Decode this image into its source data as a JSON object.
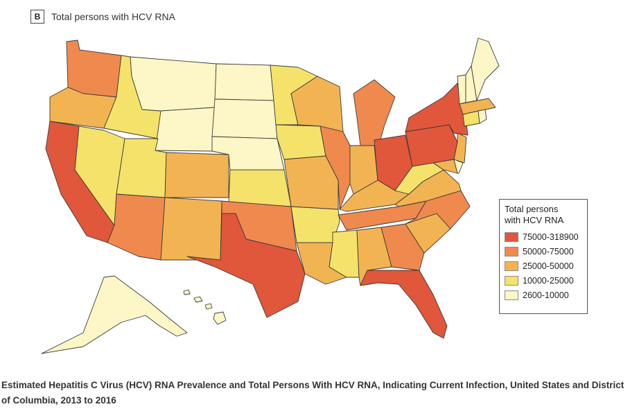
{
  "panel": {
    "letter": "B",
    "title": "Total persons with HCV RNA"
  },
  "legend": {
    "title_line1": "Total persons",
    "title_line2": "with HCV RNA",
    "items": [
      {
        "label": "75000-318900",
        "color": "#e0573b"
      },
      {
        "label": "50000-75000",
        "color": "#f0894d"
      },
      {
        "label": "25000-50000",
        "color": "#f2b452"
      },
      {
        "label": "10000-25000",
        "color": "#f5e26a"
      },
      {
        "label": "2600-10000",
        "color": "#fdf6c6"
      }
    ]
  },
  "caption": "Estimated Hepatitis C Virus (HCV) RNA Prevalence and Total Persons With HCV RNA, Indicating Current Infection, United States and District of Columbia, 2013 to 2016",
  "map_data": {
    "type": "choropleth",
    "variable": "Total persons with HCV RNA",
    "states": [
      {
        "name": "Washington",
        "category": 1
      },
      {
        "name": "Oregon",
        "category": 2
      },
      {
        "name": "California",
        "category": 0
      },
      {
        "name": "Nevada",
        "category": 3
      },
      {
        "name": "Idaho",
        "category": 3
      },
      {
        "name": "Montana",
        "category": 4
      },
      {
        "name": "Wyoming",
        "category": 4
      },
      {
        "name": "Utah",
        "category": 3
      },
      {
        "name": "Arizona",
        "category": 1
      },
      {
        "name": "Colorado",
        "category": 2
      },
      {
        "name": "New Mexico",
        "category": 2
      },
      {
        "name": "North Dakota",
        "category": 4
      },
      {
        "name": "South Dakota",
        "category": 4
      },
      {
        "name": "Nebraska",
        "category": 4
      },
      {
        "name": "Kansas",
        "category": 3
      },
      {
        "name": "Oklahoma",
        "category": 1
      },
      {
        "name": "Texas",
        "category": 0
      },
      {
        "name": "Minnesota",
        "category": 3
      },
      {
        "name": "Iowa",
        "category": 3
      },
      {
        "name": "Missouri",
        "category": 2
      },
      {
        "name": "Arkansas",
        "category": 3
      },
      {
        "name": "Louisiana",
        "category": 2
      },
      {
        "name": "Wisconsin",
        "category": 2
      },
      {
        "name": "Illinois",
        "category": 1
      },
      {
        "name": "Michigan",
        "category": 1
      },
      {
        "name": "Indiana",
        "category": 2
      },
      {
        "name": "Ohio",
        "category": 0
      },
      {
        "name": "Kentucky",
        "category": 2
      },
      {
        "name": "Tennessee",
        "category": 1
      },
      {
        "name": "Mississippi",
        "category": 3
      },
      {
        "name": "Alabama",
        "category": 2
      },
      {
        "name": "Georgia",
        "category": 1
      },
      {
        "name": "Florida",
        "category": 0
      },
      {
        "name": "South Carolina",
        "category": 2
      },
      {
        "name": "North Carolina",
        "category": 1
      },
      {
        "name": "Virginia",
        "category": 2
      },
      {
        "name": "West Virginia",
        "category": 3
      },
      {
        "name": "Pennsylvania",
        "category": 0
      },
      {
        "name": "New York",
        "category": 0
      },
      {
        "name": "New Jersey",
        "category": 2
      },
      {
        "name": "Maryland",
        "category": 2
      },
      {
        "name": "Delaware",
        "category": 4
      },
      {
        "name": "Vermont",
        "category": 4
      },
      {
        "name": "New Hampshire",
        "category": 4
      },
      {
        "name": "Maine",
        "category": 4
      },
      {
        "name": "Massachusetts",
        "category": 2
      },
      {
        "name": "Connecticut",
        "category": 3
      },
      {
        "name": "Rhode Island",
        "category": 4
      },
      {
        "name": "Alaska",
        "category": 4
      },
      {
        "name": "Hawaii",
        "category": 4
      }
    ]
  }
}
